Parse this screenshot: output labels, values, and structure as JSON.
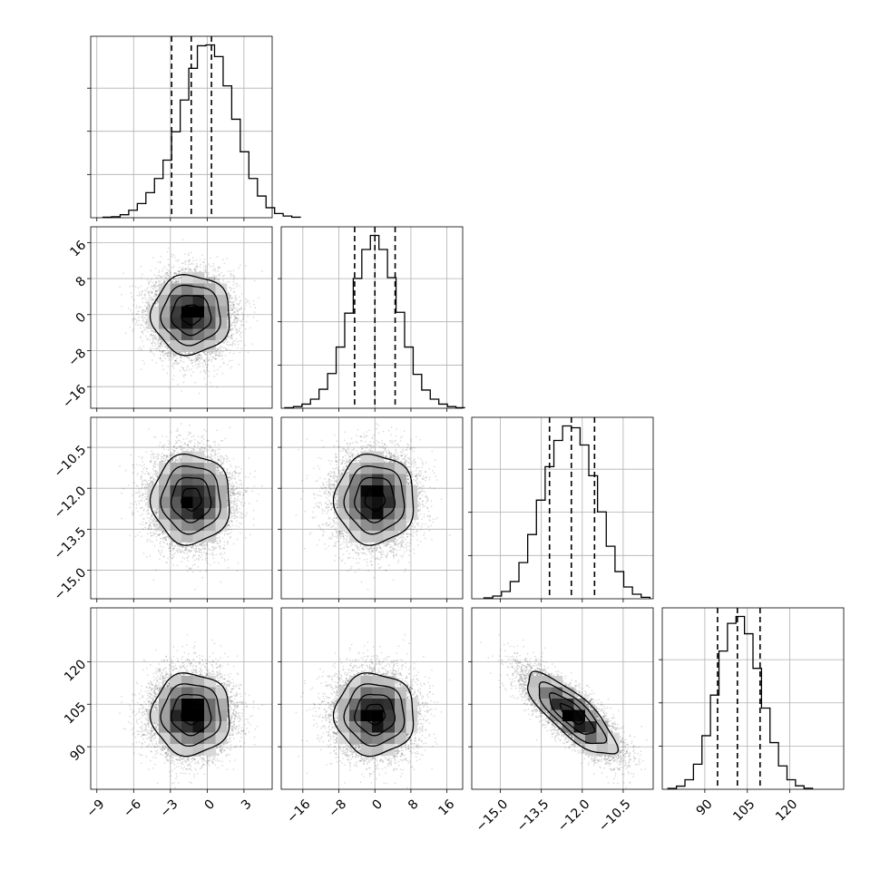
{
  "chart_data": {
    "type": "corner",
    "parameters": [
      {
        "range": [
          -9.5,
          5.3
        ],
        "ticks": [
          -9,
          -6,
          -3,
          0,
          3
        ],
        "tick_labels": [
          "−9",
          "−6",
          "−3",
          "0",
          "3"
        ],
        "quantiles": [
          -2.9,
          -1.3,
          0.35
        ],
        "center": -1.3,
        "sigma": 1.6,
        "hist_edges_start": -8.5,
        "hist_bin_width": 0.7,
        "hist_counts": [
          3,
          6,
          18,
          45,
          85,
          150,
          235,
          345,
          515,
          705,
          895,
          1030,
          1035,
          965,
          790,
          590,
          395,
          235,
          130,
          60,
          25,
          10,
          3
        ]
      },
      {
        "range": [
          -20.8,
          19.5
        ],
        "ticks": [
          -16,
          -8,
          0,
          8,
          16
        ],
        "tick_labels": [
          "−16",
          "−8",
          "0",
          "8",
          "16"
        ],
        "quantiles": [
          -4.5,
          0.0,
          4.5
        ],
        "center": 0.0,
        "sigma": 4.4,
        "hist_edges_start": -20.0,
        "hist_bin_width": 1.9,
        "hist_counts": [
          3,
          10,
          25,
          55,
          115,
          210,
          370,
          575,
          785,
          960,
          1045,
          960,
          790,
          580,
          370,
          205,
          110,
          55,
          25,
          10,
          3
        ]
      },
      {
        "range": [
          -16.05,
          -9.4
        ],
        "ticks": [
          -15.0,
          -13.5,
          -12.0,
          -10.5
        ],
        "tick_labels": [
          "−15.0",
          "−13.5",
          "−12.0",
          "−10.5"
        ],
        "quantiles": [
          -13.2,
          -12.4,
          -11.55
        ],
        "center": -12.4,
        "sigma": 0.82,
        "hist_edges_start": -15.6,
        "hist_bin_width": 0.32,
        "hist_counts": [
          5,
          15,
          40,
          95,
          200,
          355,
          545,
          730,
          875,
          955,
          945,
          850,
          680,
          480,
          290,
          150,
          65,
          25,
          8
        ]
      },
      {
        "range": [
          75.0,
          139.0
        ],
        "ticks": [
          90,
          105,
          120
        ],
        "tick_labels": [
          "90",
          "105",
          "120"
        ],
        "quantiles": [
          94.5,
          101.5,
          109.5
        ],
        "center": 101.5,
        "sigma": 7.2,
        "hist_edges_start": 77.0,
        "hist_bin_width": 3.0,
        "hist_counts": [
          5,
          18,
          55,
          145,
          310,
          545,
          800,
          960,
          1000,
          900,
          700,
          470,
          270,
          135,
          55,
          20,
          6
        ]
      }
    ],
    "correlations": {
      "2-3": -0.8
    },
    "contour_levels_sigma": [
      0.5,
      1.0,
      1.5,
      2.0
    ],
    "n_samples": 9000,
    "grid": true,
    "histogram_style": "step",
    "quantile_linestyle": "dashed"
  }
}
